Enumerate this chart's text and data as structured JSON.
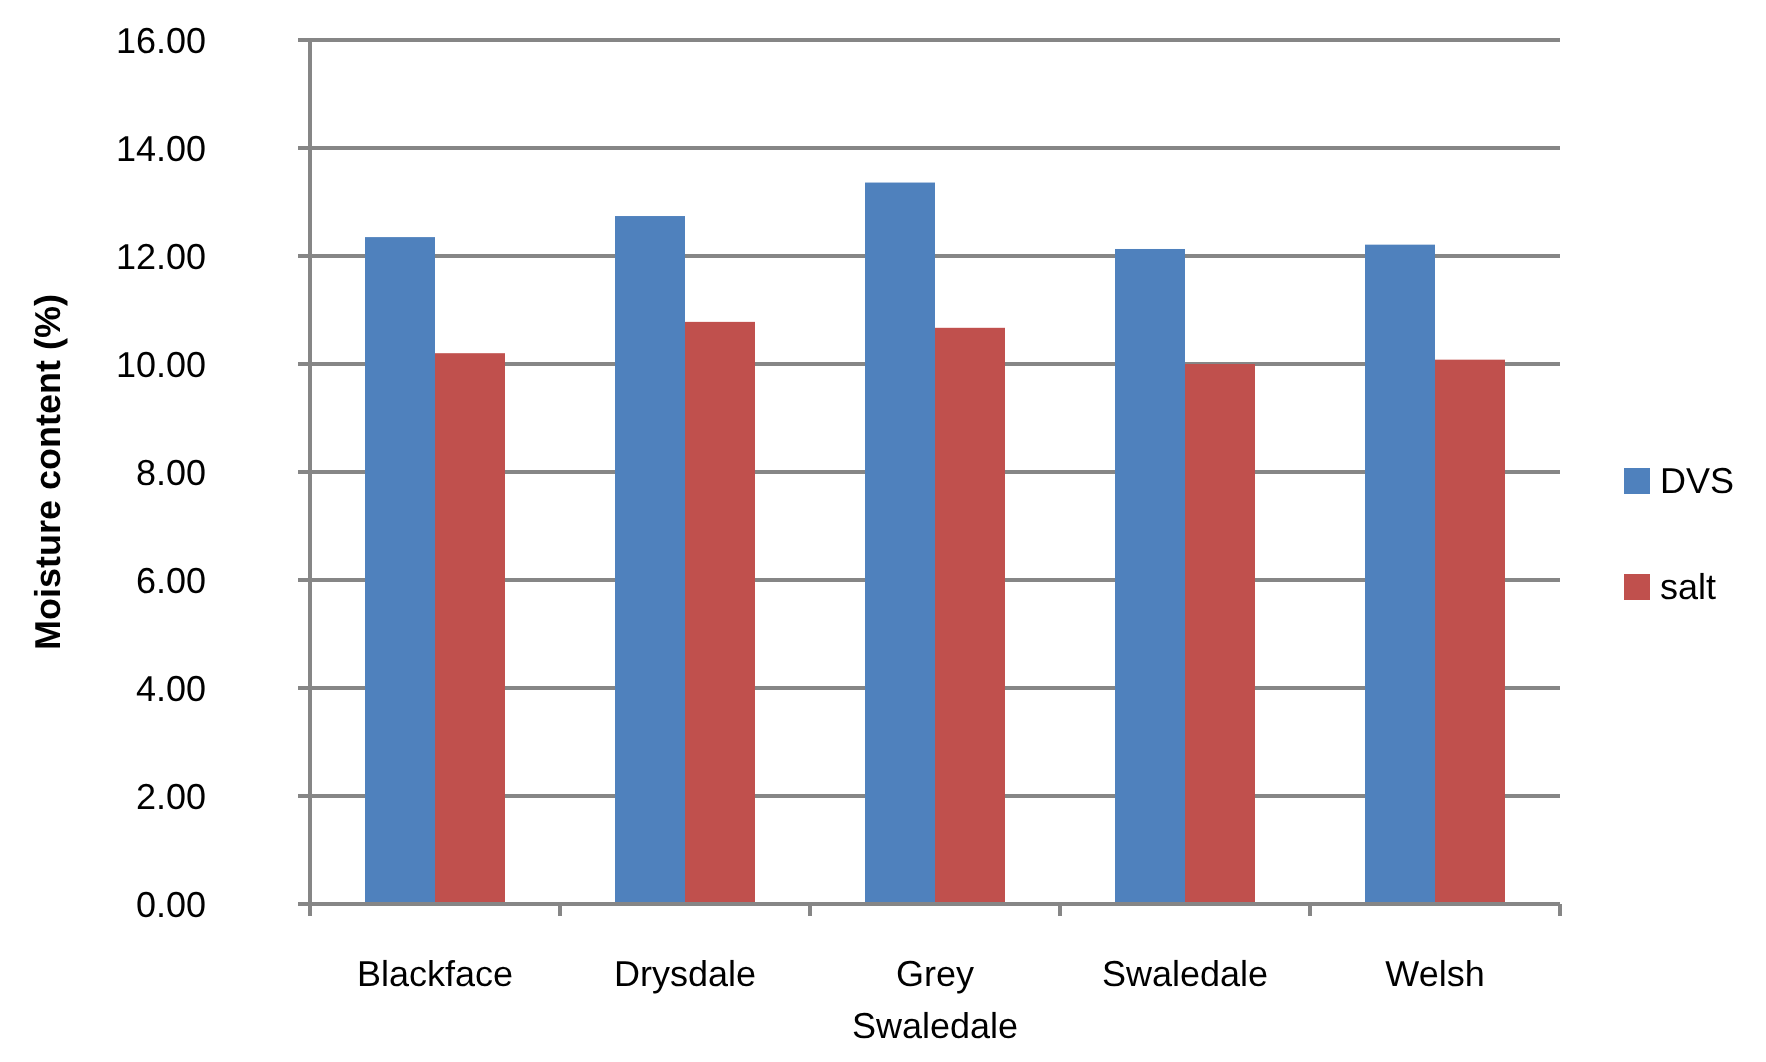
{
  "chart_data": {
    "type": "bar",
    "ylabel": "Moisture content (%)",
    "categories": [
      "Blackface",
      "Drysdale",
      "Grey Swaledale",
      "Swaledale",
      "Welsh"
    ],
    "series": [
      {
        "name": "DVS",
        "color": "#4f81bd",
        "values": [
          12.35,
          12.74,
          13.36,
          12.13,
          12.21
        ]
      },
      {
        "name": "salt",
        "color": "#c0504d",
        "values": [
          10.2,
          10.78,
          10.67,
          10.0,
          10.08
        ]
      }
    ],
    "ylim": [
      0,
      16
    ],
    "yticks": [
      {
        "value": 0,
        "label": "0.00"
      },
      {
        "value": 2,
        "label": "2.00"
      },
      {
        "value": 4,
        "label": "4.00"
      },
      {
        "value": 6,
        "label": "6.00"
      },
      {
        "value": 8,
        "label": "8.00"
      },
      {
        "value": 10,
        "label": "10.00"
      },
      {
        "value": 12,
        "label": "12.00"
      },
      {
        "value": 14,
        "label": "14.00"
      },
      {
        "value": 16,
        "label": "16.00"
      }
    ],
    "grid": "y",
    "legend": "right"
  }
}
